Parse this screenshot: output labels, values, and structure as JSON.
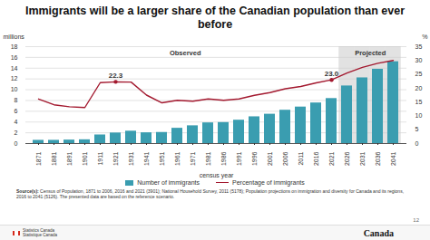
{
  "chart_data": {
    "type": "bar",
    "title": "Immigrants will be a larger share of the Canadian population than ever before",
    "x_label": "census year",
    "y_label": "millions",
    "y2_label": "%",
    "categories": [
      "1871",
      "1881",
      "1891",
      "1901",
      "1911",
      "1921",
      "1931",
      "1941",
      "1951",
      "1961",
      "1971",
      "1981",
      "1986",
      "1991",
      "1996",
      "2001",
      "2006",
      "2011",
      "2016",
      "2021",
      "2026",
      "2031",
      "2036",
      "2041"
    ],
    "series": [
      {
        "name": "Number of immigrants",
        "type": "bar",
        "color": "#3a9db0",
        "values": [
          0.6,
          0.6,
          0.65,
          0.7,
          1.6,
          1.96,
          2.3,
          2.0,
          2.06,
          2.84,
          3.3,
          3.84,
          3.9,
          4.34,
          4.97,
          5.45,
          6.19,
          6.78,
          7.54,
          8.36,
          10.7,
          12.2,
          13.8,
          15.2
        ]
      },
      {
        "name": "Percentage of immigrants",
        "type": "line",
        "axis": "y2",
        "color": "#a3192f",
        "values": [
          16.1,
          14.0,
          13.3,
          13.0,
          22.0,
          22.3,
          22.2,
          17.5,
          14.7,
          15.6,
          15.3,
          16.1,
          15.6,
          16.1,
          17.4,
          18.4,
          19.8,
          20.6,
          21.9,
          23.0,
          25.5,
          27.5,
          29.0,
          30.0
        ]
      }
    ],
    "ylim": [
      0,
      18
    ],
    "yticks": [
      0,
      2,
      4,
      6,
      8,
      10,
      12,
      14,
      16,
      18
    ],
    "y2lim": [
      0,
      35
    ],
    "y2ticks": [
      0,
      5,
      10,
      15,
      20,
      25,
      30,
      35
    ],
    "grid": true,
    "legend": "bottom",
    "annotations": [
      {
        "x": "1921",
        "value": 22.3,
        "label": "22.3",
        "axis": "y2"
      },
      {
        "x": "2021",
        "value": 23.0,
        "label": "23.0",
        "axis": "y2"
      }
    ],
    "regions": [
      {
        "label": "Observed",
        "from": "1871",
        "to": "2021"
      },
      {
        "label": "Projected",
        "from": "2026",
        "to": "2041",
        "color": "#e2e2e2"
      }
    ],
    "source_label": "Source(s):",
    "source": "Census of Population, 1871 to 2006, 2016 and 2021 (3901); National Household Survey, 2011 (5178); Population projections on immigration and diversity for Canada and its regions, 2016 to 2041 (5126). The presented data are based on the reference scenario.",
    "footer": {
      "left": [
        "Statistics Canada",
        "Statistique Canada"
      ],
      "right": "Canada",
      "page": "12"
    }
  }
}
